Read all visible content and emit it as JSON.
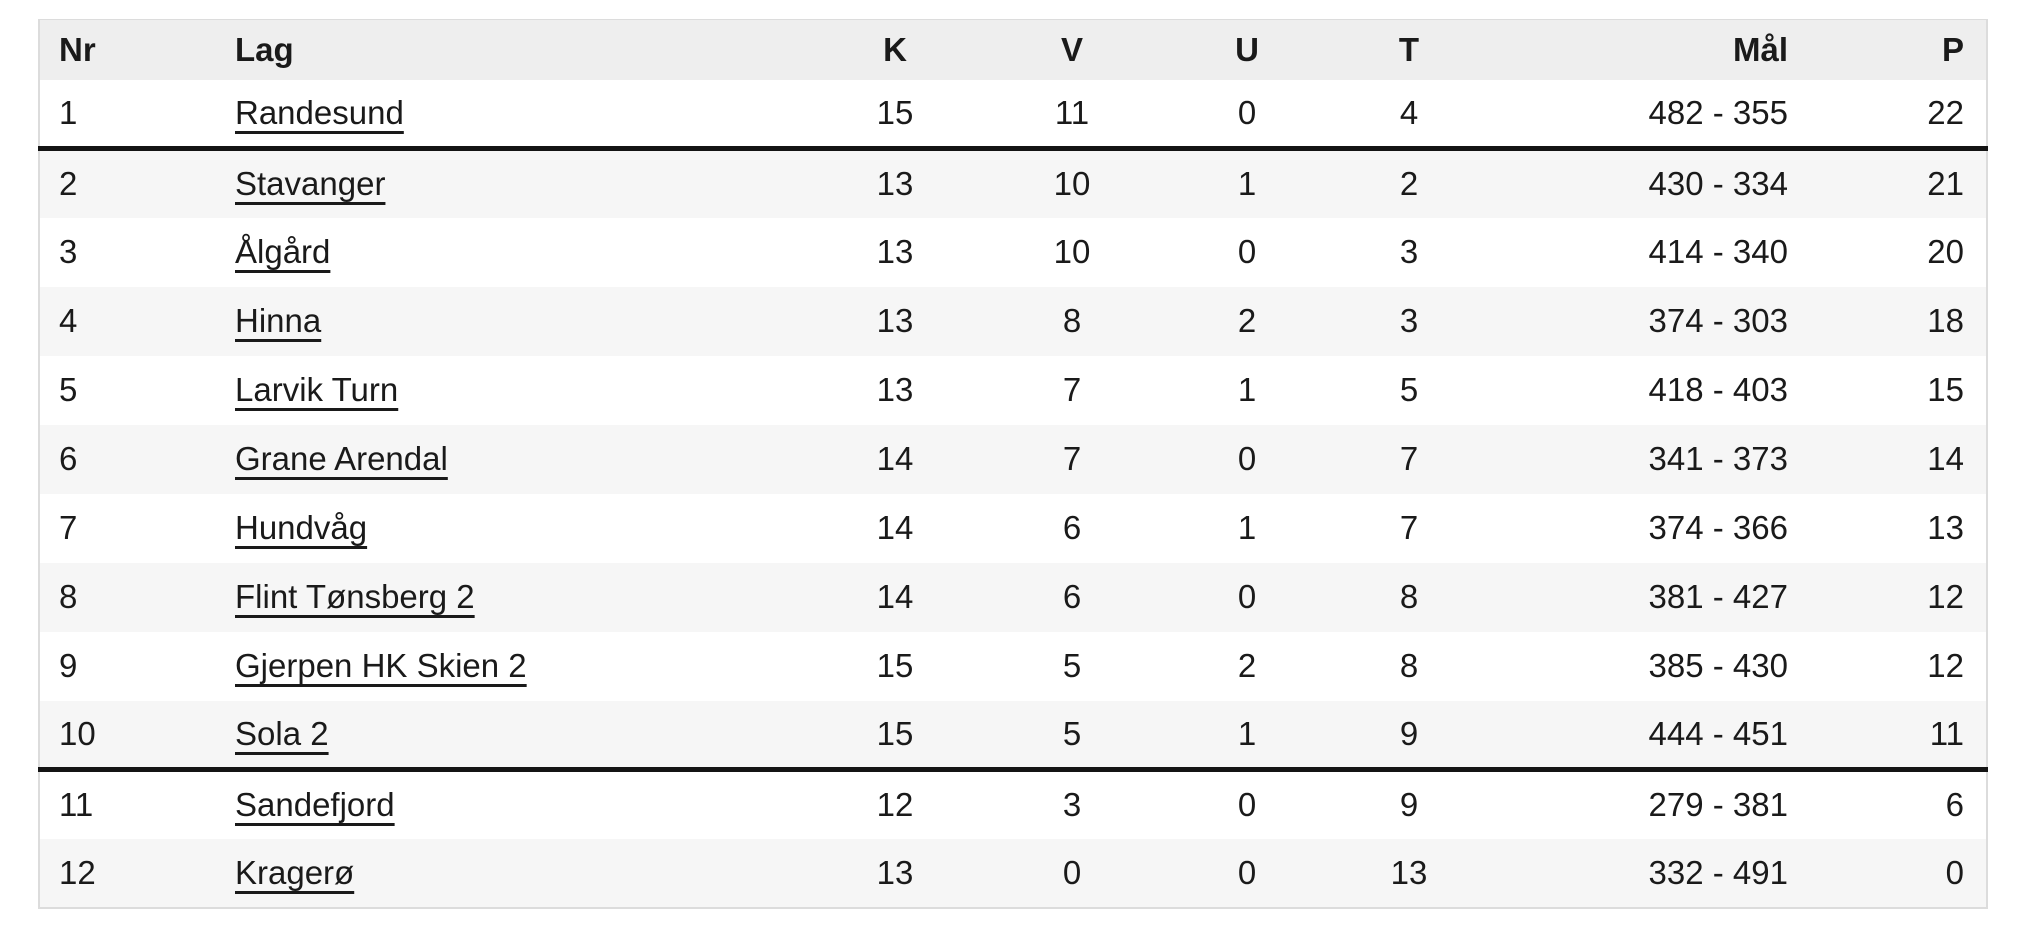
{
  "table": {
    "columns": [
      {
        "key": "nr",
        "label": "Nr"
      },
      {
        "key": "lag",
        "label": "Lag"
      },
      {
        "key": "k",
        "label": "K"
      },
      {
        "key": "v",
        "label": "V"
      },
      {
        "key": "u",
        "label": "U"
      },
      {
        "key": "t",
        "label": "T"
      },
      {
        "key": "mal",
        "label": "Mål"
      },
      {
        "key": "p",
        "label": "P"
      }
    ],
    "rows": [
      {
        "nr": "1",
        "lag": "Randesund",
        "k": "15",
        "v": "11",
        "u": "0",
        "t": "4",
        "mal": "482 - 355",
        "p": "22",
        "divider_after": true
      },
      {
        "nr": "2",
        "lag": "Stavanger",
        "k": "13",
        "v": "10",
        "u": "1",
        "t": "2",
        "mal": "430 - 334",
        "p": "21",
        "divider_after": false
      },
      {
        "nr": "3",
        "lag": "Ålgård",
        "k": "13",
        "v": "10",
        "u": "0",
        "t": "3",
        "mal": "414 - 340",
        "p": "20",
        "divider_after": false
      },
      {
        "nr": "4",
        "lag": "Hinna",
        "k": "13",
        "v": "8",
        "u": "2",
        "t": "3",
        "mal": "374 - 303",
        "p": "18",
        "divider_after": false
      },
      {
        "nr": "5",
        "lag": "Larvik Turn",
        "k": "13",
        "v": "7",
        "u": "1",
        "t": "5",
        "mal": "418 - 403",
        "p": "15",
        "divider_after": false
      },
      {
        "nr": "6",
        "lag": "Grane Arendal",
        "k": "14",
        "v": "7",
        "u": "0",
        "t": "7",
        "mal": "341 - 373",
        "p": "14",
        "divider_after": false
      },
      {
        "nr": "7",
        "lag": "Hundvåg",
        "k": "14",
        "v": "6",
        "u": "1",
        "t": "7",
        "mal": "374 - 366",
        "p": "13",
        "divider_after": false
      },
      {
        "nr": "8",
        "lag": "Flint Tønsberg 2",
        "k": "14",
        "v": "6",
        "u": "0",
        "t": "8",
        "mal": "381 - 427",
        "p": "12",
        "divider_after": false
      },
      {
        "nr": "9",
        "lag": "Gjerpen HK Skien 2",
        "k": "15",
        "v": "5",
        "u": "2",
        "t": "8",
        "mal": "385 - 430",
        "p": "12",
        "divider_after": false
      },
      {
        "nr": "10",
        "lag": "Sola 2",
        "k": "15",
        "v": "5",
        "u": "1",
        "t": "9",
        "mal": "444 - 451",
        "p": "11",
        "divider_after": true
      },
      {
        "nr": "11",
        "lag": "Sandefjord",
        "k": "12",
        "v": "3",
        "u": "0",
        "t": "9",
        "mal": "279 - 381",
        "p": "6",
        "divider_after": false
      },
      {
        "nr": "12",
        "lag": "Kragerø",
        "k": "13",
        "v": "0",
        "u": "0",
        "t": "13",
        "mal": "332 - 491",
        "p": "0",
        "divider_after": false
      }
    ],
    "colors": {
      "header_bg": "#eeeeee",
      "zebra_bg": "#f6f6f6",
      "row_bg": "#ffffff",
      "outer_border": "#dcdcdc",
      "divider": "#141414",
      "text": "#1a1a1a"
    }
  }
}
